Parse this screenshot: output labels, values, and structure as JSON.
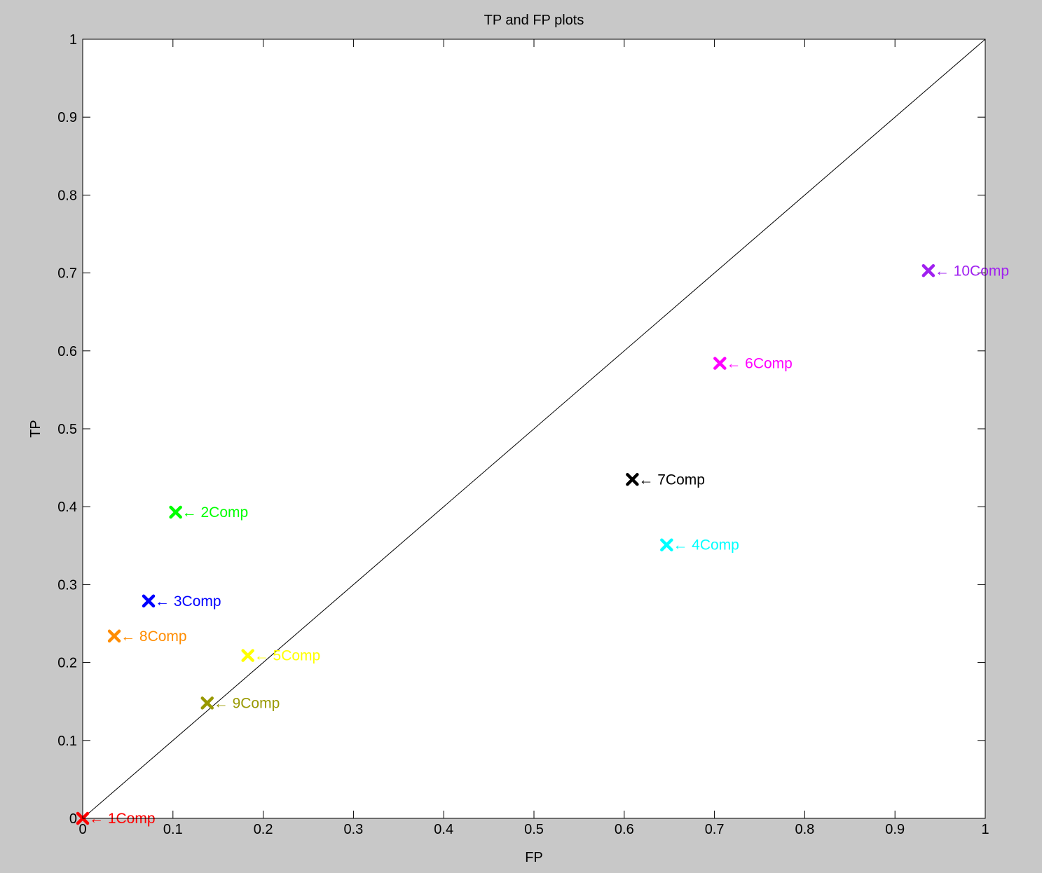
{
  "chart_data": {
    "type": "scatter",
    "title": "TP and FP plots",
    "xlabel": "FP",
    "ylabel": "TP",
    "xlim": [
      0,
      1
    ],
    "ylim": [
      0,
      1
    ],
    "xticks": [
      "0",
      "0.1",
      "0.2",
      "0.3",
      "0.4",
      "0.5",
      "0.6",
      "0.7",
      "0.8",
      "0.9",
      "1"
    ],
    "yticks": [
      "0",
      "0.1",
      "0.2",
      "0.3",
      "0.4",
      "0.5",
      "0.6",
      "0.7",
      "0.8",
      "0.9",
      "1"
    ],
    "xtick_values": [
      0,
      0.1,
      0.2,
      0.3,
      0.4,
      0.5,
      0.6,
      0.7,
      0.8,
      0.9,
      1
    ],
    "ytick_values": [
      0,
      0.1,
      0.2,
      0.3,
      0.4,
      0.5,
      0.6,
      0.7,
      0.8,
      0.9,
      1
    ],
    "grid": false,
    "reference_line": {
      "from": [
        0,
        0
      ],
      "to": [
        1,
        1
      ],
      "color": "#000000"
    },
    "points": [
      {
        "label": "← 1Comp",
        "x": 0.0,
        "y": 0.0,
        "color": "#ff0000"
      },
      {
        "label": "← 2Comp",
        "x": 0.103,
        "y": 0.393,
        "color": "#00ff00"
      },
      {
        "label": "← 3Comp",
        "x": 0.073,
        "y": 0.279,
        "color": "#0000ff"
      },
      {
        "label": "← 4Comp",
        "x": 0.647,
        "y": 0.351,
        "color": "#00ffff"
      },
      {
        "label": "← 5Comp",
        "x": 0.183,
        "y": 0.209,
        "color": "#ffff00"
      },
      {
        "label": "← 6Comp",
        "x": 0.706,
        "y": 0.584,
        "color": "#ff00ff"
      },
      {
        "label": "← 7Comp",
        "x": 0.609,
        "y": 0.435,
        "color": "#000000"
      },
      {
        "label": "← 8Comp",
        "x": 0.035,
        "y": 0.234,
        "color": "#ff8c00"
      },
      {
        "label": "← 9Comp",
        "x": 0.138,
        "y": 0.148,
        "color": "#999900"
      },
      {
        "label": "← 10Comp",
        "x": 0.937,
        "y": 0.703,
        "color": "#a020f0"
      }
    ]
  }
}
